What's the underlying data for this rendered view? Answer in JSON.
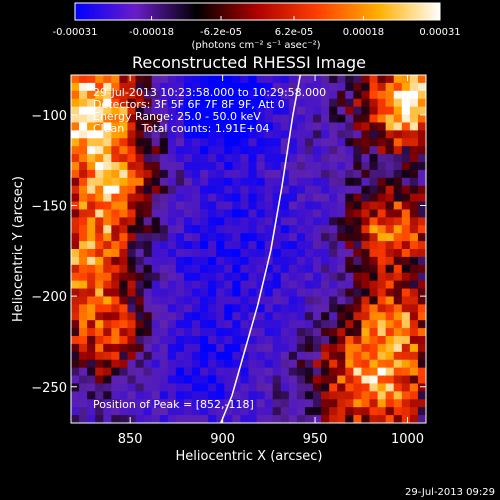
{
  "chart_data": {
    "type": "heatmap",
    "title": "Reconstructed RHESSI Image",
    "xlabel": "Heliocentric X (arcsec)",
    "ylabel": "Heliocentric Y (arcsec)",
    "xlim": [
      818,
      1010
    ],
    "ylim": [
      -270,
      -78
    ],
    "x_ticks": [
      850,
      900,
      950,
      1000
    ],
    "x_tick_labels": [
      "850",
      "900",
      "950",
      "1000"
    ],
    "y_ticks": [
      -100,
      -150,
      -200,
      -250
    ],
    "y_tick_labels": [
      "−100",
      "−150",
      "−200",
      "−250"
    ],
    "colorbar": {
      "min": -0.00031,
      "max": 0.00031,
      "ticks": [
        -0.00031,
        -0.00018,
        -6.2e-05,
        6.2e-05,
        0.00018,
        0.00031
      ],
      "tick_labels": [
        "-0.00031",
        "-0.00018",
        "-6.2e-05",
        "6.2e-05",
        "0.00018",
        "0.00031"
      ],
      "units": "(photons cm⁻² s⁻¹ asec⁻²)",
      "colors": [
        "#0000ff",
        "#6a1cc8",
        "#000000",
        "#b00000",
        "#ff4000",
        "#ffb000",
        "#ffffff"
      ]
    },
    "annotations": [
      "29-Jul-2013 10:23:58.000 to 10:29:58.000",
      "Detectors: 3F 5F 6F 7F 8F 9F, Att 0",
      "Energy Range: 25.0 - 50.0 keV",
      "Clean     Total counts: 1.91E+04"
    ],
    "peak_label": "Position of Peak = [852,-118]",
    "limb_curve": {
      "x": [
        942,
        938,
        932,
        926,
        919,
        912,
        905,
        899
      ],
      "y": [
        -78,
        -100,
        -140,
        -175,
        -205,
        -230,
        -255,
        -270
      ]
    }
  },
  "footer": {
    "timestamp": "29-Jul-2013 09:29"
  }
}
